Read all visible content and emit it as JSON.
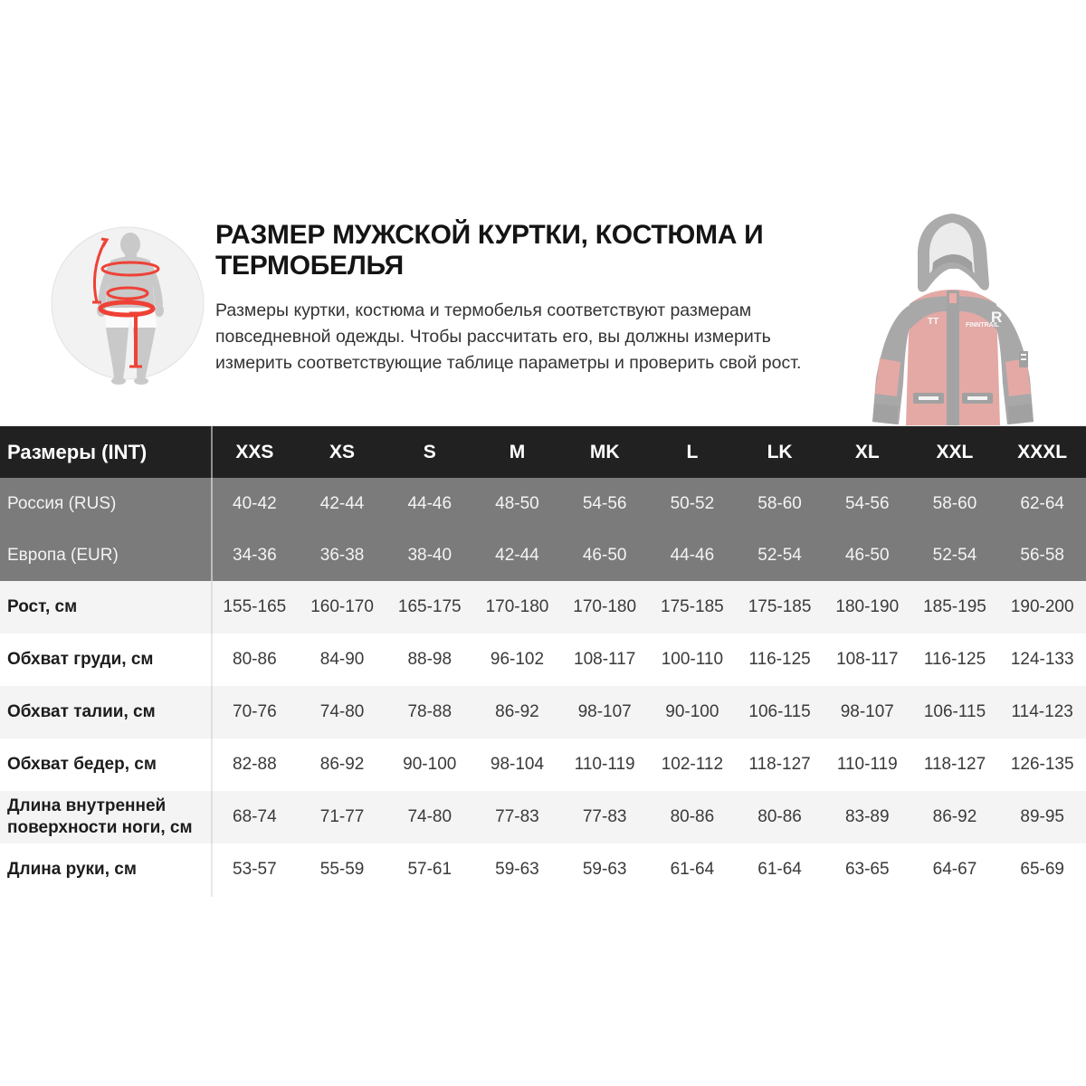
{
  "page": {
    "title": "РАЗМЕР МУЖСКОЙ КУРТКИ, КОСТЮМА И ТЕРМОБЕЛЬЯ",
    "description": "Размеры куртки, костюма и термобелья соответствуют размерам повседневной одежды. Чтобы рассчитать его, вы должны измерить измерить соответствующие таблице параметры и проверить свой рост."
  },
  "illustration": {
    "icon": "body-measurement-icon",
    "accent_color": "#ef4136",
    "silhouette_color": "#c9c9c9",
    "circle_color": "#f2f2f2"
  },
  "jacket": {
    "icon": "jacket-product-image",
    "body_color": "#c4423a",
    "trim_color": "#3f3f3f",
    "chest_logo": "R",
    "chest_mark": "TT",
    "brand_text": "FINNTRAIL"
  },
  "colors": {
    "table_header_bg": "#212121",
    "table_gray_row_bg": "#7b7b7b",
    "table_stripe_row_bg": "#f4f4f4",
    "table_white_row_bg": "#ffffff"
  },
  "size_table": {
    "header_label": "Размеры (INT)",
    "columns": [
      "XXS",
      "XS",
      "S",
      "M",
      "MK",
      "L",
      "LK",
      "XL",
      "XXL",
      "XXXL"
    ],
    "rows": [
      {
        "label": "Россия (RUS)",
        "style": "gray",
        "values": [
          "40-42",
          "42-44",
          "44-46",
          "48-50",
          "54-56",
          "50-52",
          "58-60",
          "54-56",
          "58-60",
          "62-64"
        ]
      },
      {
        "label": "Европа (EUR)",
        "style": "gray",
        "values": [
          "34-36",
          "36-38",
          "38-40",
          "42-44",
          "46-50",
          "44-46",
          "52-54",
          "46-50",
          "52-54",
          "56-58"
        ]
      },
      {
        "label": "Рост, см",
        "style": "stripe",
        "values": [
          "155-165",
          "160-170",
          "165-175",
          "170-180",
          "170-180",
          "175-185",
          "175-185",
          "180-190",
          "185-195",
          "190-200"
        ]
      },
      {
        "label": "Обхват груди, см",
        "style": "white",
        "values": [
          "80-86",
          "84-90",
          "88-98",
          "96-102",
          "108-117",
          "100-110",
          "116-125",
          "108-117",
          "116-125",
          "124-133"
        ]
      },
      {
        "label": "Обхват талии, см",
        "style": "stripe",
        "values": [
          "70-76",
          "74-80",
          "78-88",
          "86-92",
          "98-107",
          "90-100",
          "106-115",
          "98-107",
          "106-115",
          "114-123"
        ]
      },
      {
        "label": "Обхват бедер, см",
        "style": "white",
        "values": [
          "82-88",
          "86-92",
          "90-100",
          "98-104",
          "110-119",
          "102-112",
          "118-127",
          "110-119",
          "118-127",
          "126-135"
        ]
      },
      {
        "label": "Длина внутренней поверхности ноги, см",
        "style": "stripe",
        "values": [
          "68-74",
          "71-77",
          "74-80",
          "77-83",
          "77-83",
          "80-86",
          "80-86",
          "83-89",
          "86-92",
          "89-95"
        ]
      },
      {
        "label": "Длина руки, см",
        "style": "white",
        "values": [
          "53-57",
          "55-59",
          "57-61",
          "59-63",
          "59-63",
          "61-64",
          "61-64",
          "63-65",
          "64-67",
          "65-69"
        ]
      }
    ]
  }
}
